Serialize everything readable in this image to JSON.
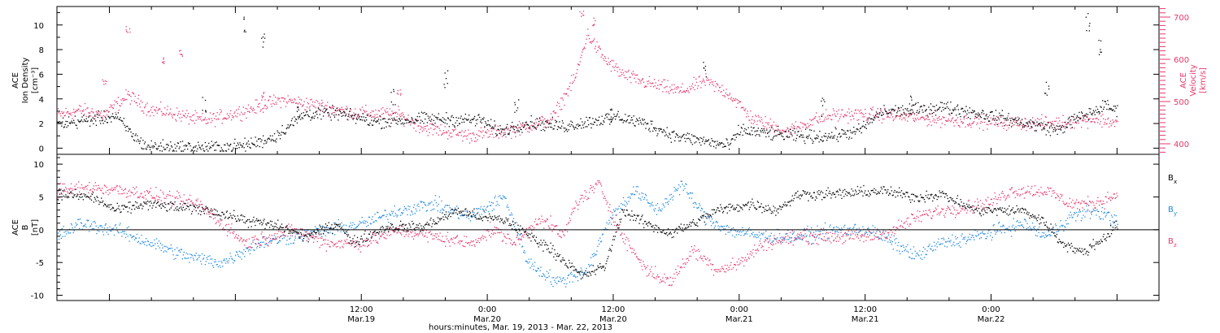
{
  "chart_data": [
    {
      "type": "scatter",
      "panel": "top",
      "ylabel_left": [
        "ACE",
        "Ion Density",
        "[cm⁻³]"
      ],
      "ylabel_right": [
        "ACE",
        "Velocity",
        "[km/s]"
      ],
      "ylim_left": [
        -0.5,
        11.5
      ],
      "yticks_left": [
        "0",
        "2",
        "4",
        "6",
        "8",
        "10"
      ],
      "ylim_right": [
        375,
        725
      ],
      "yticks_right": [
        "400",
        "500",
        "600",
        "700"
      ],
      "series": [
        {
          "name": "Ion Density",
          "axis": "left",
          "color": "#000000",
          "keypoints": [
            [
              0,
              2.0
            ],
            [
              10,
              2.6
            ],
            [
              13,
              1.0
            ],
            [
              15,
              0.2
            ],
            [
              22,
              0.1
            ],
            [
              27,
              0.1
            ],
            [
              31,
              0.2
            ],
            [
              34,
              0.5
            ],
            [
              37,
              1.0
            ],
            [
              42,
              2.8
            ],
            [
              47,
              2.9
            ],
            [
              54,
              2.2
            ],
            [
              63,
              2.4
            ],
            [
              72,
              2.3
            ],
            [
              75,
              1.4
            ],
            [
              80,
              2.1
            ],
            [
              86,
              1.8
            ],
            [
              95,
              2.6
            ],
            [
              100,
              2.0
            ],
            [
              105,
              1.0
            ],
            [
              110,
              0.6
            ],
            [
              114,
              0.2
            ],
            [
              116,
              1.5
            ],
            [
              121,
              1.2
            ],
            [
              126,
              1.0
            ],
            [
              131,
              1.0
            ],
            [
              136,
              1.4
            ],
            [
              140,
              3.0
            ],
            [
              148,
              3.2
            ],
            [
              150,
              3.4
            ],
            [
              156,
              2.9
            ],
            [
              160,
              2.5
            ],
            [
              165,
              2.0
            ],
            [
              170,
              1.5
            ],
            [
              172,
              2.2
            ],
            [
              176,
              3.0
            ],
            [
              178,
              3.5
            ],
            [
              180,
              3.0
            ]
          ],
          "spikes": [
            [
              32,
              10.8
            ],
            [
              35,
              9.5
            ],
            [
              25,
              4.2
            ],
            [
              41,
              3.9
            ],
            [
              57,
              4.8
            ],
            [
              66,
              6.4
            ],
            [
              78,
              4.0
            ],
            [
              94,
              3.3
            ],
            [
              110,
              7.2
            ],
            [
              130,
              4.1
            ],
            [
              145,
              4.3
            ],
            [
              168,
              5.8
            ],
            [
              175,
              11.0
            ],
            [
              177,
              9.0
            ]
          ]
        },
        {
          "name": "Velocity",
          "axis": "right",
          "color": "#e8386b",
          "keypoints": [
            [
              0,
              470
            ],
            [
              4,
              480
            ],
            [
              8,
              470
            ],
            [
              12,
              515
            ],
            [
              16,
              480
            ],
            [
              18,
              478
            ],
            [
              25,
              455
            ],
            [
              32,
              480
            ],
            [
              38,
              505
            ],
            [
              45,
              490
            ],
            [
              50,
              475
            ],
            [
              58,
              470
            ],
            [
              62,
              440
            ],
            [
              70,
              420
            ],
            [
              78,
              435
            ],
            [
              84,
              460
            ],
            [
              88,
              560
            ],
            [
              90,
              660
            ],
            [
              93,
              600
            ],
            [
              96,
              565
            ],
            [
              100,
              545
            ],
            [
              106,
              525
            ],
            [
              110,
              550
            ],
            [
              114,
              520
            ],
            [
              118,
              460
            ],
            [
              124,
              430
            ],
            [
              128,
              455
            ],
            [
              132,
              470
            ],
            [
              140,
              470
            ],
            [
              148,
              460
            ],
            [
              155,
              455
            ],
            [
              163,
              450
            ],
            [
              170,
              450
            ],
            [
              176,
              460
            ],
            [
              180,
              450
            ]
          ],
          "spikes": [
            [
              8,
              560
            ],
            [
              12,
              680
            ],
            [
              18,
              610
            ],
            [
              21,
              625
            ],
            [
              89,
              715
            ],
            [
              91,
              700
            ],
            [
              35,
              525
            ],
            [
              58,
              530
            ]
          ]
        }
      ]
    },
    {
      "type": "scatter",
      "panel": "bottom",
      "ylabel": [
        "ACE",
        "B",
        "[nT]"
      ],
      "ylim": [
        -10.8,
        11.5
      ],
      "yticks": [
        "-10",
        "-5",
        "0",
        "5",
        "10"
      ],
      "zero_line": true,
      "legend_position": "right",
      "series": [
        {
          "name": "Bx",
          "color": "#000000",
          "keypoints": [
            [
              0,
              5.5
            ],
            [
              6,
              5.0
            ],
            [
              10,
              3.0
            ],
            [
              15,
              4.0
            ],
            [
              20,
              3.5
            ],
            [
              26,
              3.0
            ],
            [
              32,
              1.5
            ],
            [
              38,
              0.5
            ],
            [
              42,
              -1.0
            ],
            [
              48,
              1.0
            ],
            [
              50,
              -2.0
            ],
            [
              56,
              0.5
            ],
            [
              62,
              0.5
            ],
            [
              68,
              3.0
            ],
            [
              72,
              2.0
            ],
            [
              76,
              1.5
            ],
            [
              84,
              -3.0
            ],
            [
              89,
              -7.0
            ],
            [
              93,
              -5.5
            ],
            [
              96,
              3.0
            ],
            [
              100,
              1.0
            ],
            [
              104,
              -0.5
            ],
            [
              108,
              1.0
            ],
            [
              112,
              3.0
            ],
            [
              118,
              4.0
            ],
            [
              122,
              3.0
            ],
            [
              126,
              5.5
            ],
            [
              132,
              5.5
            ],
            [
              140,
              6.0
            ],
            [
              146,
              5.0
            ],
            [
              150,
              5.5
            ],
            [
              156,
              3.0
            ],
            [
              164,
              3.0
            ],
            [
              168,
              1.0
            ],
            [
              170,
              -1.5
            ],
            [
              174,
              -3.5
            ],
            [
              178,
              -1.0
            ],
            [
              180,
              1.0
            ]
          ]
        },
        {
          "name": "By",
          "color": "#1e88e5",
          "keypoints": [
            [
              0,
              -1.0
            ],
            [
              4,
              1.0
            ],
            [
              10,
              0.0
            ],
            [
              16,
              -2.0
            ],
            [
              22,
              -4.0
            ],
            [
              28,
              -5.0
            ],
            [
              34,
              -2.0
            ],
            [
              40,
              -1.0
            ],
            [
              46,
              0.0
            ],
            [
              52,
              1.0
            ],
            [
              58,
              3.0
            ],
            [
              64,
              4.0
            ],
            [
              70,
              2.0
            ],
            [
              76,
              5.0
            ],
            [
              80,
              -5.0
            ],
            [
              85,
              -8.0
            ],
            [
              90,
              -6.0
            ],
            [
              94,
              2.0
            ],
            [
              98,
              6.0
            ],
            [
              102,
              3.0
            ],
            [
              106,
              7.0
            ],
            [
              110,
              2.0
            ],
            [
              114,
              0.0
            ],
            [
              120,
              -1.0
            ],
            [
              126,
              -1.0
            ],
            [
              132,
              0.0
            ],
            [
              138,
              0.0
            ],
            [
              142,
              -2.0
            ],
            [
              146,
              -4.0
            ],
            [
              150,
              -2.0
            ],
            [
              156,
              -1.0
            ],
            [
              160,
              0.0
            ],
            [
              164,
              1.0
            ],
            [
              168,
              -1.0
            ],
            [
              172,
              2.0
            ],
            [
              176,
              3.0
            ],
            [
              180,
              1.5
            ]
          ]
        },
        {
          "name": "Bz",
          "color": "#e8386b",
          "keypoints": [
            [
              0,
              6.0
            ],
            [
              6,
              6.5
            ],
            [
              12,
              6.0
            ],
            [
              18,
              5.0
            ],
            [
              24,
              4.0
            ],
            [
              28,
              1.0
            ],
            [
              32,
              -2.0
            ],
            [
              36,
              -1.0
            ],
            [
              40,
              0.0
            ],
            [
              46,
              -2.0
            ],
            [
              52,
              -2.0
            ],
            [
              58,
              0.0
            ],
            [
              64,
              -1.0
            ],
            [
              70,
              -2.0
            ],
            [
              74,
              0.0
            ],
            [
              78,
              -2.0
            ],
            [
              82,
              2.0
            ],
            [
              86,
              -1.0
            ],
            [
              88,
              4.0
            ],
            [
              92,
              7.0
            ],
            [
              96,
              -1.0
            ],
            [
              100,
              -6.0
            ],
            [
              104,
              -8.0
            ],
            [
              108,
              -3.0
            ],
            [
              112,
              -6.0
            ],
            [
              116,
              -5.0
            ],
            [
              120,
              -2.0
            ],
            [
              126,
              -1.0
            ],
            [
              132,
              -1.0
            ],
            [
              138,
              -1.0
            ],
            [
              142,
              0.0
            ],
            [
              146,
              2.0
            ],
            [
              150,
              3.0
            ],
            [
              154,
              3.5
            ],
            [
              158,
              4.0
            ],
            [
              162,
              6.0
            ],
            [
              168,
              6.0
            ],
            [
              172,
              4.0
            ],
            [
              176,
              4.0
            ],
            [
              180,
              5.5
            ]
          ]
        }
      ]
    }
  ],
  "legend": {
    "bx": {
      "main": "B",
      "sub": "x"
    },
    "by": {
      "main": "B",
      "sub": "y"
    },
    "bz": {
      "main": "B",
      "sub": "z"
    }
  },
  "x_axis": {
    "title": "hours:minutes, Mar. 19, 2013 - Mar. 22, 2013",
    "ticks": [
      {
        "time": "12:00",
        "date": "Mar.19"
      },
      {
        "time": "0:00",
        "date": "Mar.20"
      },
      {
        "time": "12:00",
        "date": "Mar.20"
      },
      {
        "time": "0:00",
        "date": "Mar.21"
      },
      {
        "time": "12:00",
        "date": "Mar.21"
      },
      {
        "time": "0:00",
        "date": "Mar.22"
      }
    ]
  }
}
